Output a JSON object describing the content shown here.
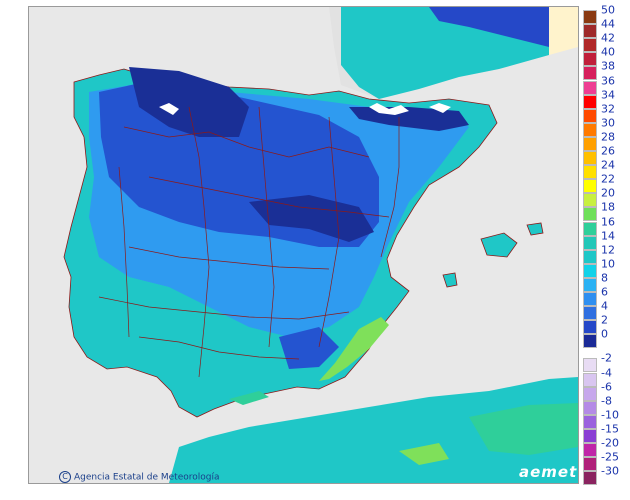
{
  "map": {
    "credit": "Agencia Estatal de Meteorología",
    "credit_symbol": "C",
    "brand": "aemet",
    "colors": {
      "sea": "#e8e8e8",
      "land_mid": "#1fc7c7",
      "land_cool": "#2f9bf0",
      "land_cold": "#2454d0",
      "land_coldest": "#1a2f96",
      "land_warm": "#2fcf9a",
      "land_warmer": "#7fe05a",
      "france": "#e6e6e6",
      "borders": "#8b1a1a"
    }
  },
  "legend": {
    "items": [
      {
        "label": "50",
        "color": "#8a3a12"
      },
      {
        "label": "44",
        "color": "#9e2a2a"
      },
      {
        "label": "42",
        "color": "#b02828"
      },
      {
        "label": "40",
        "color": "#c01f3a"
      },
      {
        "label": "38",
        "color": "#d6205c"
      },
      {
        "label": "36",
        "color": "#ee3e93"
      },
      {
        "label": "34",
        "color": "#ff0000"
      },
      {
        "label": "32",
        "color": "#ff4a00"
      },
      {
        "label": "30",
        "color": "#ff7a00"
      },
      {
        "label": "28",
        "color": "#ffa000"
      },
      {
        "label": "26",
        "color": "#ffc000"
      },
      {
        "label": "24",
        "color": "#ffe000"
      },
      {
        "label": "22",
        "color": "#ffff00"
      },
      {
        "label": "20",
        "color": "#c8f040"
      },
      {
        "label": "18",
        "color": "#6fe05a"
      },
      {
        "label": "16",
        "color": "#2fcf9a"
      },
      {
        "label": "14",
        "color": "#23c7b8"
      },
      {
        "label": "12",
        "color": "#1fc7c7"
      },
      {
        "label": "10",
        "color": "#12d2e8"
      },
      {
        "label": "8",
        "color": "#2bb2f4"
      },
      {
        "label": "6",
        "color": "#2f8ff0"
      },
      {
        "label": "4",
        "color": "#2f6fe0"
      },
      {
        "label": "2",
        "color": "#2548c8"
      },
      {
        "label": "0",
        "color": "#1a2a96"
      },
      {
        "label": "-2",
        "color": "#e8dcf4"
      },
      {
        "label": "-4",
        "color": "#d9c6f0"
      },
      {
        "label": "-6",
        "color": "#c7a8ec"
      },
      {
        "label": "-8",
        "color": "#b48ae6"
      },
      {
        "label": "-10",
        "color": "#9a62de"
      },
      {
        "label": "-15",
        "color": "#8a3fd4"
      },
      {
        "label": "-20",
        "color": "#c026a8"
      },
      {
        "label": "-25",
        "color": "#b0207a"
      },
      {
        "label": "-30",
        "color": "#8a2460"
      }
    ]
  }
}
